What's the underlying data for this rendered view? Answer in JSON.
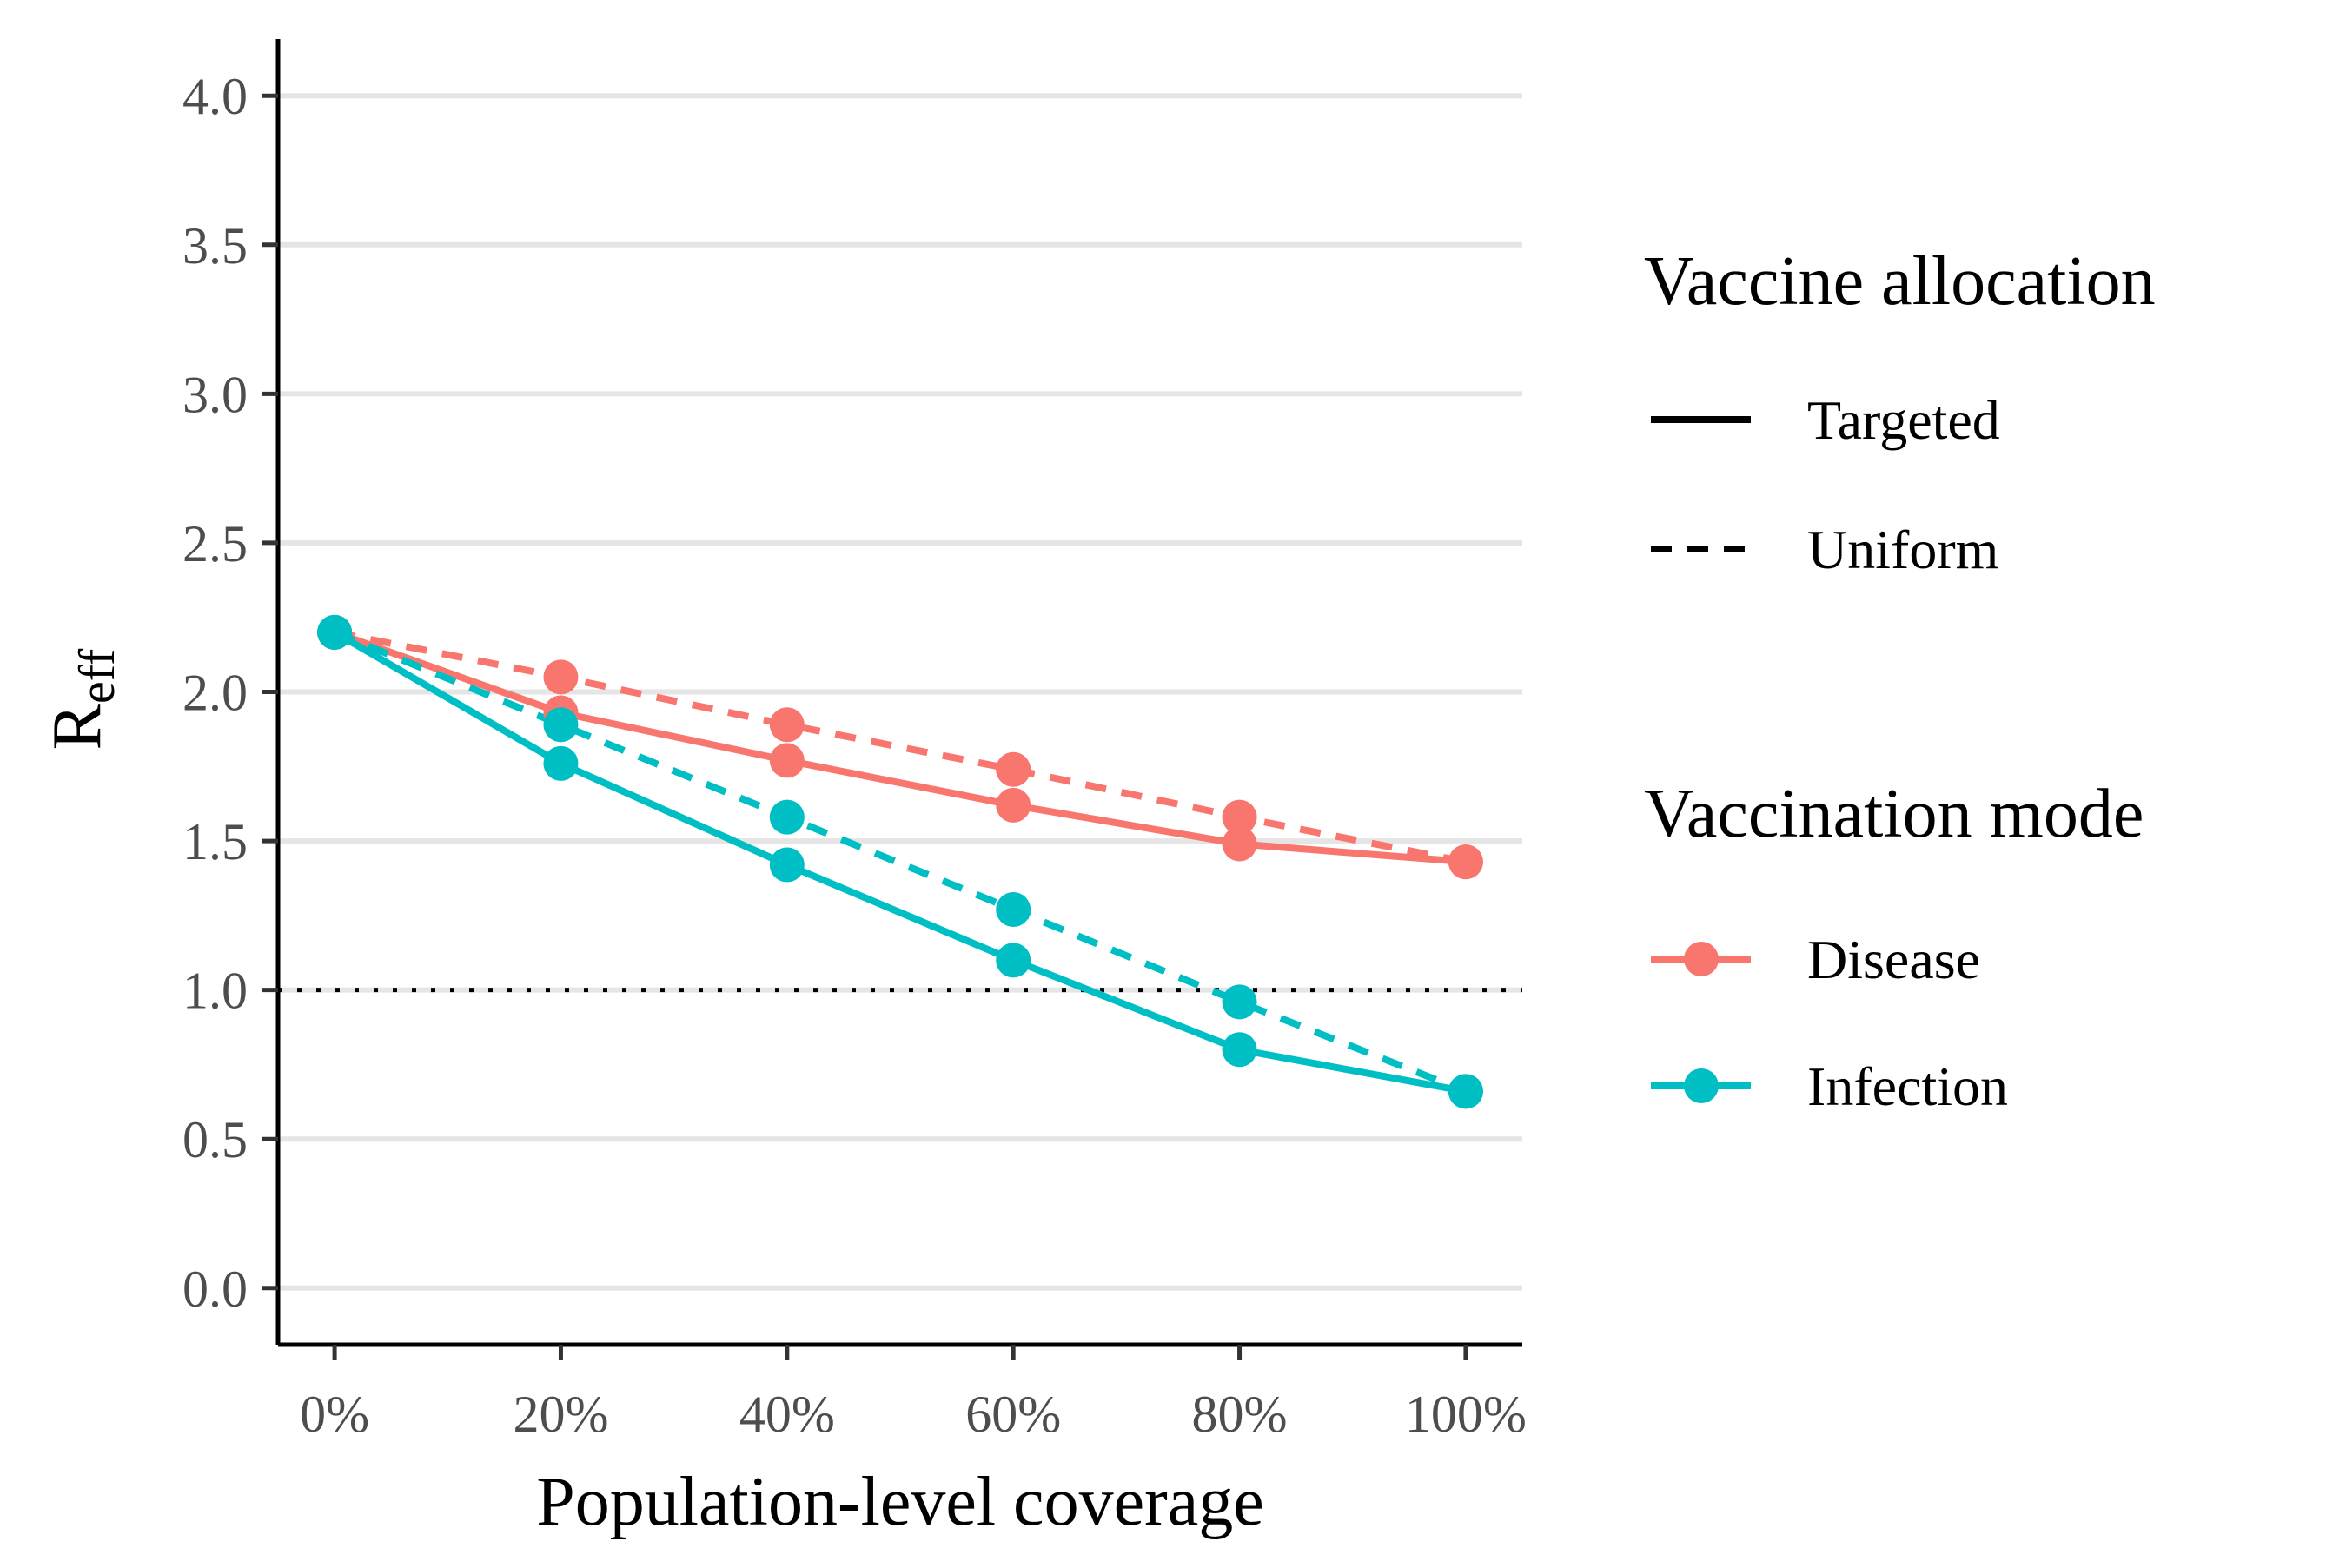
{
  "chart_data": {
    "type": "line",
    "title": "",
    "xlabel": "Population-level coverage",
    "ylabel": {
      "main": "R",
      "subscript": "eff"
    },
    "x": [
      0,
      20,
      40,
      60,
      80,
      100
    ],
    "x_tick_labels": [
      "0%",
      "20%",
      "40%",
      "60%",
      "80%",
      "100%"
    ],
    "xlim": [
      -5,
      105
    ],
    "ylim": [
      -0.19,
      4.19
    ],
    "y_ticks": [
      0.0,
      0.5,
      1.0,
      1.5,
      2.0,
      2.5,
      3.0,
      3.5,
      4.0
    ],
    "y_tick_labels": [
      "0.0",
      "0.5",
      "1.0",
      "1.5",
      "2.0",
      "2.5",
      "3.0",
      "3.5",
      "4.0"
    ],
    "reference_line": {
      "y": 1.0,
      "style": "dotted",
      "color": "#000000"
    },
    "grid": {
      "horizontal": true,
      "vertical": false,
      "color": "#e5e5e5"
    },
    "series": [
      {
        "name": "Disease",
        "mode": "Disease",
        "allocation": "Targeted",
        "color": "#F8766D",
        "linestyle": "solid",
        "values": [
          2.2,
          1.93,
          1.77,
          1.62,
          1.49,
          1.43
        ]
      },
      {
        "name": "Disease",
        "mode": "Disease",
        "allocation": "Uniform",
        "color": "#F8766D",
        "linestyle": "dashed",
        "values": [
          2.2,
          2.05,
          1.89,
          1.74,
          1.58,
          1.43
        ]
      },
      {
        "name": "Infection",
        "mode": "Infection",
        "allocation": "Targeted",
        "color": "#00BFC4",
        "linestyle": "solid",
        "values": [
          2.2,
          1.76,
          1.42,
          1.1,
          0.8,
          0.66
        ]
      },
      {
        "name": "Infection",
        "mode": "Infection",
        "allocation": "Uniform",
        "color": "#00BFC4",
        "linestyle": "dashed",
        "values": [
          2.2,
          1.89,
          1.58,
          1.27,
          0.96,
          0.66
        ]
      }
    ],
    "legend_position": "right",
    "legends": [
      {
        "title": "Vaccine allocation",
        "items": [
          {
            "label": "Targeted",
            "linestyle": "solid"
          },
          {
            "label": "Uniform",
            "linestyle": "dashed"
          }
        ]
      },
      {
        "title": "Vaccination mode",
        "items": [
          {
            "label": "Disease",
            "color": "#F8766D"
          },
          {
            "label": "Infection",
            "color": "#00BFC4"
          }
        ]
      }
    ]
  }
}
